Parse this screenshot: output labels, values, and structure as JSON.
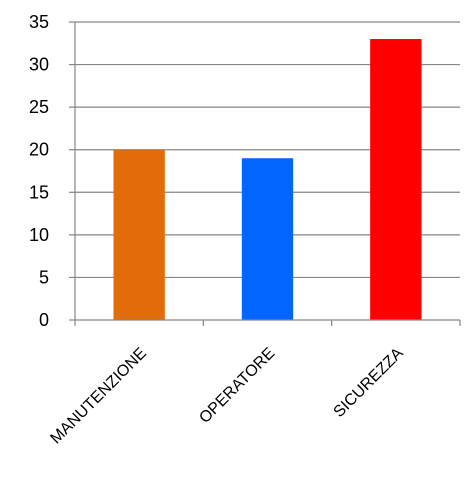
{
  "chart_data": {
    "type": "bar",
    "title": "",
    "xlabel": "",
    "ylabel": "",
    "categories": [
      "MANUTENZIONE",
      "OPERATORE",
      "SICUREZZA"
    ],
    "values": [
      20,
      19,
      33
    ],
    "colors": [
      "#E36C0A",
      "#0066FF",
      "#FF0000"
    ],
    "ylim": [
      0,
      35
    ],
    "yticks": [
      "0",
      "5",
      "10",
      "15",
      "20",
      "25",
      "30",
      "35"
    ],
    "grid": true,
    "legend": "none"
  }
}
